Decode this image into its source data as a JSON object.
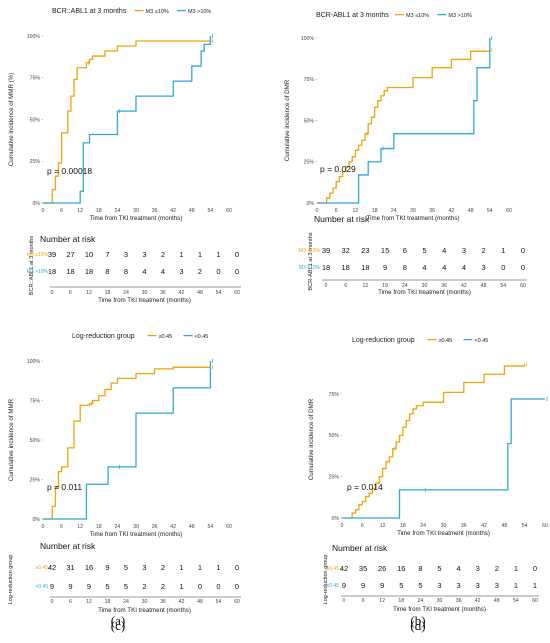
{
  "colors": {
    "low": "#F0A30A",
    "high": "#2FA9D8"
  },
  "charts": [
    {
      "legend_title": "BCR::ABL1 at 3 months",
      "legend_items": [
        "M3 ≤10%",
        "M3 >10%"
      ],
      "ylabel": "Cumulative incidence of MMR (%)",
      "yticks": [
        "0%",
        "25%",
        "50%",
        "75%",
        "100%"
      ],
      "xticks": [
        "0",
        "6",
        "12",
        "18",
        "24",
        "30",
        "36",
        "42",
        "48",
        "54",
        "60"
      ],
      "xlabel": "Time from TKI treatment (months)",
      "pvalue": "p = 0.00018",
      "risk_title": "Number at risk",
      "risk_ylabel": "BCR::ABL1 at 3 months",
      "risk_labels": [
        "M3 ≤10%",
        "M3 >10%"
      ],
      "risk_rows": [
        [
          "39",
          "27",
          "10",
          "7",
          "3",
          "3",
          "2",
          "1",
          "1",
          "1",
          "0"
        ],
        [
          "18",
          "18",
          "18",
          "8",
          "8",
          "4",
          "4",
          "3",
          "2",
          "0",
          "0"
        ]
      ],
      "caption": "(a)"
    },
    {
      "legend_title": "BCR-ABL1 at 3 months",
      "legend_items": [
        "M3 ≤10%",
        "M3 >10%"
      ],
      "ylabel": "Cumulative incidence of DMR",
      "yticks": [
        "0%",
        "25%",
        "50%",
        "75%",
        "100%"
      ],
      "xticks": [
        "0",
        "6",
        "12",
        "18",
        "24",
        "30",
        "36",
        "42",
        "48",
        "54",
        "60"
      ],
      "xlabel": "Time from TKI treatment (months)",
      "pvalue": "p = 0.029",
      "risk_title": "Number at risk",
      "risk_ylabel": "BCR-ABL1 at 3 months",
      "risk_labels": [
        "M3 ≤10%",
        "M3 >10%"
      ],
      "risk_rows": [
        [
          "39",
          "32",
          "23",
          "15",
          "6",
          "5",
          "4",
          "3",
          "2",
          "1",
          "0"
        ],
        [
          "18",
          "18",
          "18",
          "9",
          "8",
          "4",
          "4",
          "4",
          "3",
          "0",
          "0"
        ]
      ],
      "caption": "(b)"
    },
    {
      "legend_title": "Log-reduction group",
      "legend_items": [
        "≥0.45",
        "<0.45"
      ],
      "ylabel": "Cumulative incidence of MMR",
      "yticks": [
        "0%",
        "25%",
        "50%",
        "75%",
        "100%"
      ],
      "xticks": [
        "0",
        "6",
        "12",
        "18",
        "24",
        "30",
        "36",
        "42",
        "48",
        "54",
        "60"
      ],
      "xlabel": "Time from TKI treatment (months)",
      "pvalue": "p = 0.011",
      "risk_title": "Number at risk",
      "risk_ylabel": "Log-reduction group",
      "risk_labels": [
        "≥0.45",
        "<0.45"
      ],
      "risk_rows": [
        [
          "42",
          "31",
          "16",
          "9",
          "5",
          "3",
          "2",
          "1",
          "1",
          "1",
          "0"
        ],
        [
          "9",
          "9",
          "9",
          "5",
          "5",
          "2",
          "2",
          "1",
          "0",
          "0",
          "0"
        ]
      ],
      "caption": "(c)"
    },
    {
      "legend_title": "Log-reduction group",
      "legend_items": [
        "≥0.45",
        "<0.45"
      ],
      "ylabel": "Cumulative incidence of DMR",
      "yticks": [
        "0%",
        "25%",
        "50%",
        "75%"
      ],
      "xticks": [
        "0",
        "6",
        "12",
        "18",
        "24",
        "30",
        "36",
        "42",
        "48",
        "54",
        "60"
      ],
      "xlabel": "Time from TKI treatment (months)",
      "pvalue": "p = 0.014",
      "risk_title": "Number at risk",
      "risk_ylabel": "Log-reduction group",
      "risk_labels": [
        "≥0.45",
        "<0.45"
      ],
      "risk_rows": [
        [
          "42",
          "35",
          "26",
          "16",
          "8",
          "5",
          "4",
          "3",
          "2",
          "1",
          "0"
        ],
        [
          "9",
          "9",
          "9",
          "5",
          "5",
          "3",
          "3",
          "3",
          "3",
          "1",
          "1"
        ]
      ],
      "caption": "(d)"
    }
  ],
  "chart_data": [
    {
      "type": "line",
      "title": "BCR::ABL1 at 3 months",
      "xlabel": "Time from TKI treatment (months)",
      "ylabel": "Cumulative incidence of MMR (%)",
      "xlim": [
        0,
        60
      ],
      "ylim": [
        0,
        1
      ],
      "legend_position": "top",
      "series": [
        {
          "name": "M3 ≤10%",
          "x": [
            0,
            3,
            4,
            5,
            6,
            8,
            9,
            10,
            11,
            12,
            14,
            15,
            16,
            18,
            20,
            24,
            30,
            36,
            42,
            48,
            54
          ],
          "y": [
            0,
            0.08,
            0.16,
            0.24,
            0.42,
            0.55,
            0.64,
            0.74,
            0.81,
            0.81,
            0.84,
            0.86,
            0.88,
            0.88,
            0.91,
            0.94,
            0.97,
            0.97,
            0.97,
            0.97,
            0.97
          ]
        },
        {
          "name": "M3 >10%",
          "x": [
            0,
            6,
            12,
            13,
            14,
            15,
            24,
            27,
            30,
            42,
            48,
            51,
            52,
            54
          ],
          "y": [
            0,
            0,
            0.07,
            0.36,
            0.36,
            0.41,
            0.55,
            0.55,
            0.64,
            0.73,
            0.82,
            0.91,
            0.95,
            1.0
          ]
        }
      ]
    },
    {
      "type": "line",
      "title": "BCR-ABL1 at 3 months",
      "xlabel": "Time from TKI treatment (months)",
      "ylabel": "Cumulative incidence of DMR",
      "xlim": [
        0,
        60
      ],
      "ylim": [
        0,
        1
      ],
      "legend_position": "top",
      "series": [
        {
          "name": "M3 ≤10%",
          "x": [
            0,
            3,
            4,
            5,
            6,
            7,
            8,
            9,
            10,
            11,
            12,
            13,
            14,
            15,
            16,
            17,
            18,
            19,
            20,
            21,
            22,
            24,
            30,
            36,
            42,
            48,
            54
          ],
          "y": [
            0,
            0.03,
            0.06,
            0.09,
            0.13,
            0.16,
            0.19,
            0.22,
            0.25,
            0.28,
            0.32,
            0.35,
            0.38,
            0.42,
            0.48,
            0.52,
            0.58,
            0.62,
            0.65,
            0.68,
            0.7,
            0.7,
            0.76,
            0.82,
            0.87,
            0.92,
            0.93
          ]
        },
        {
          "name": "M3 >10%",
          "x": [
            0,
            12,
            13,
            16,
            20,
            24,
            48,
            49,
            50,
            54
          ],
          "y": [
            0,
            0,
            0.17,
            0.25,
            0.33,
            0.42,
            0.42,
            0.62,
            0.82,
            1.0
          ]
        }
      ]
    },
    {
      "type": "line",
      "title": "Log-reduction group",
      "xlabel": "Time from TKI treatment (months)",
      "ylabel": "Cumulative incidence of MMR",
      "xlim": [
        0,
        60
      ],
      "ylim": [
        0,
        1
      ],
      "legend_position": "top",
      "series": [
        {
          "name": "≥0.45",
          "x": [
            0,
            3,
            4,
            5,
            6,
            8,
            10,
            12,
            14,
            15,
            16,
            18,
            20,
            22,
            24,
            30,
            36,
            42,
            48,
            54
          ],
          "y": [
            0,
            0.08,
            0.2,
            0.3,
            0.33,
            0.45,
            0.62,
            0.72,
            0.72,
            0.73,
            0.75,
            0.78,
            0.82,
            0.86,
            0.89,
            0.92,
            0.95,
            0.96,
            0.96,
            0.96
          ]
        },
        {
          "name": "<0.45",
          "x": [
            0,
            6,
            12,
            14,
            21,
            24,
            30,
            36,
            42,
            48,
            54
          ],
          "y": [
            0,
            0,
            0,
            0.22,
            0.33,
            0.33,
            0.67,
            0.67,
            0.83,
            0.83,
            1.0
          ]
        }
      ]
    },
    {
      "type": "line",
      "title": "Log-reduction group",
      "xlabel": "Time from TKI treatment (months)",
      "ylabel": "Cumulative incidence of DMR",
      "xlim": [
        0,
        60
      ],
      "ylim": [
        0,
        0.95
      ],
      "legend_position": "top",
      "series": [
        {
          "name": "≥0.45",
          "x": [
            0,
            3,
            4,
            5,
            6,
            7,
            8,
            9,
            10,
            11,
            12,
            13,
            14,
            15,
            16,
            17,
            18,
            19,
            20,
            21,
            22,
            24,
            30,
            36,
            42,
            48,
            54
          ],
          "y": [
            0,
            0.03,
            0.05,
            0.08,
            0.1,
            0.13,
            0.15,
            0.18,
            0.21,
            0.25,
            0.3,
            0.34,
            0.37,
            0.42,
            0.46,
            0.5,
            0.55,
            0.59,
            0.63,
            0.66,
            0.68,
            0.7,
            0.76,
            0.82,
            0.87,
            0.92,
            0.93
          ]
        },
        {
          "name": "<0.45",
          "x": [
            0,
            12,
            17,
            24,
            48,
            49,
            50,
            60
          ],
          "y": [
            0,
            0,
            0.17,
            0.17,
            0.17,
            0.45,
            0.72,
            0.72
          ]
        }
      ]
    }
  ]
}
